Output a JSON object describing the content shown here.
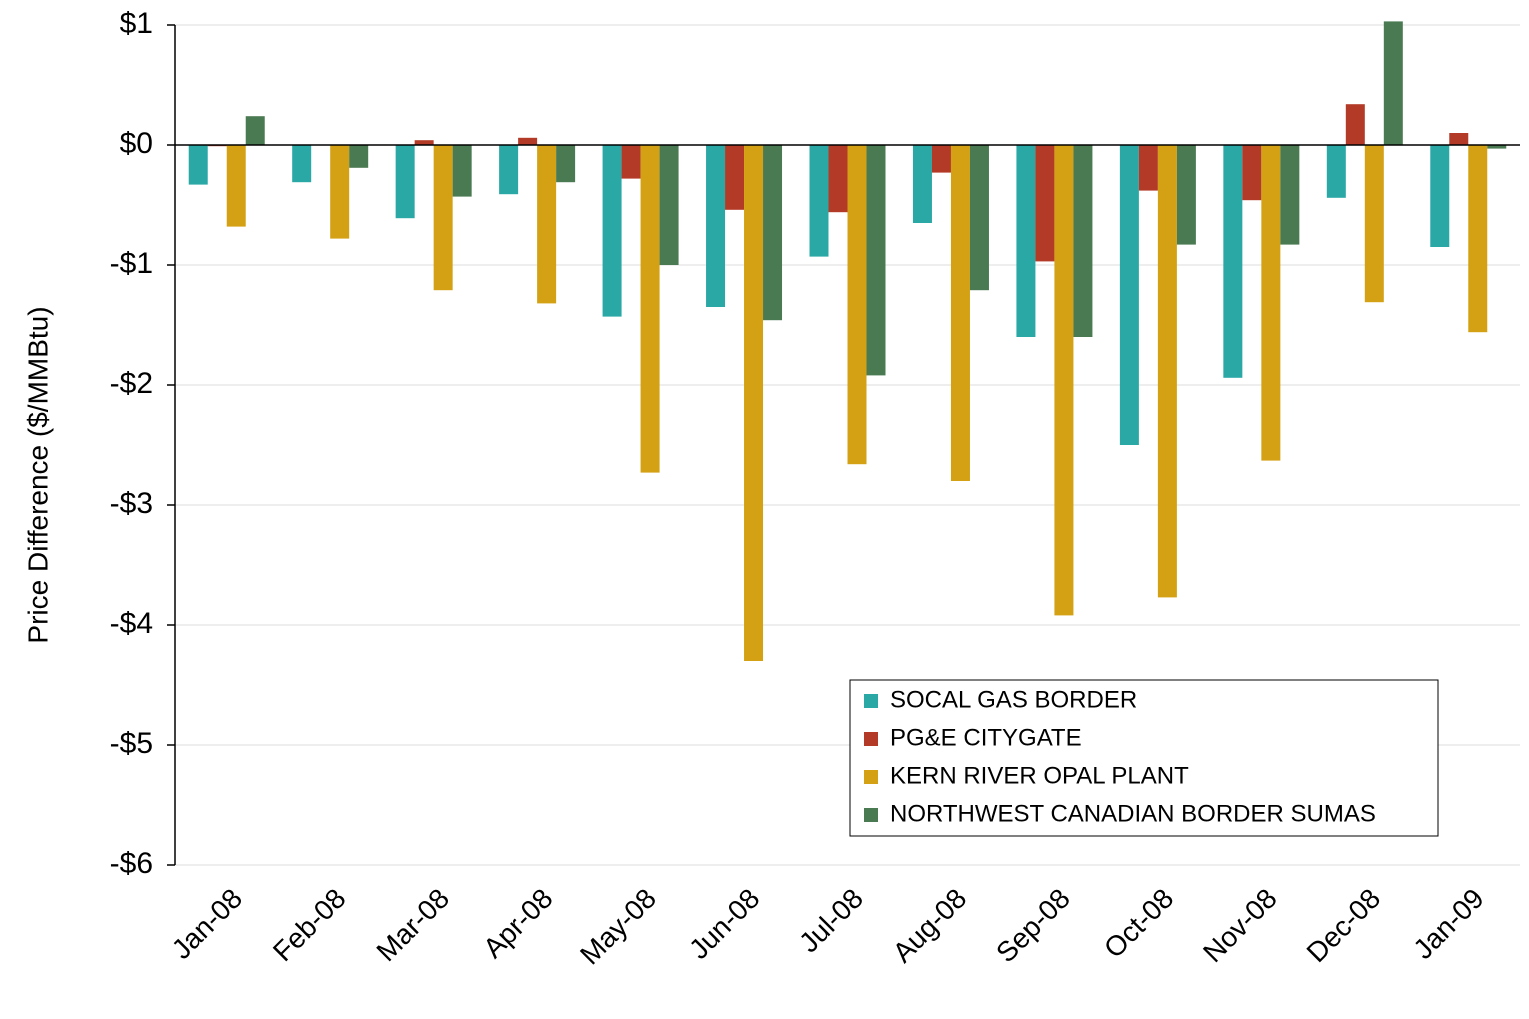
{
  "chart_data": {
    "type": "bar",
    "y_axis_label": "Price Difference  ($/MMBtu)",
    "categories": [
      "Jan-08",
      "Feb-08",
      "Mar-08",
      "Apr-08",
      "May-08",
      "Jun-08",
      "Jul-08",
      "Aug-08",
      "Sep-08",
      "Oct-08",
      "Nov-08",
      "Dec-08",
      "Jan-09"
    ],
    "series": [
      {
        "name": "SOCAL GAS BORDER",
        "color": "#2aa8a6",
        "values": [
          -0.33,
          -0.31,
          -0.61,
          -0.41,
          -1.43,
          -1.35,
          -0.93,
          -0.65,
          -1.6,
          -2.5,
          -1.94,
          -0.44,
          -0.85
        ]
      },
      {
        "name": "PG&E CITYGATE",
        "color": "#b33a26",
        "values": [
          -0.01,
          0,
          0.04,
          0.06,
          -0.28,
          -0.54,
          -0.56,
          -0.23,
          -0.97,
          -0.38,
          -0.46,
          0.34,
          0.1
        ]
      },
      {
        "name": "KERN RIVER OPAL PLANT",
        "color": "#d4a114",
        "values": [
          -0.68,
          -0.78,
          -1.21,
          -1.32,
          -2.73,
          -4.3,
          -2.66,
          -2.8,
          -3.92,
          -3.77,
          -2.63,
          -1.31,
          -1.56
        ]
      },
      {
        "name": "NORTHWEST CANADIAN BORDER SUMAS",
        "color": "#4a7a52",
        "values": [
          0.24,
          -0.19,
          -0.43,
          -0.31,
          -1.0,
          -1.46,
          -1.92,
          -1.21,
          -1.6,
          -0.83,
          -0.83,
          1.03,
          -0.03
        ]
      }
    ],
    "ylim": [
      -6,
      1
    ],
    "yticks": [
      {
        "value": 1,
        "label": "$1"
      },
      {
        "value": 0,
        "label": "$0"
      },
      {
        "value": -1,
        "label": "-$1"
      },
      {
        "value": -2,
        "label": "-$2"
      },
      {
        "value": -3,
        "label": "-$3"
      },
      {
        "value": -4,
        "label": "-$4"
      },
      {
        "value": -5,
        "label": "-$5"
      },
      {
        "value": -6,
        "label": "-$6"
      }
    ],
    "grid": true,
    "legend_position": "lower right"
  }
}
